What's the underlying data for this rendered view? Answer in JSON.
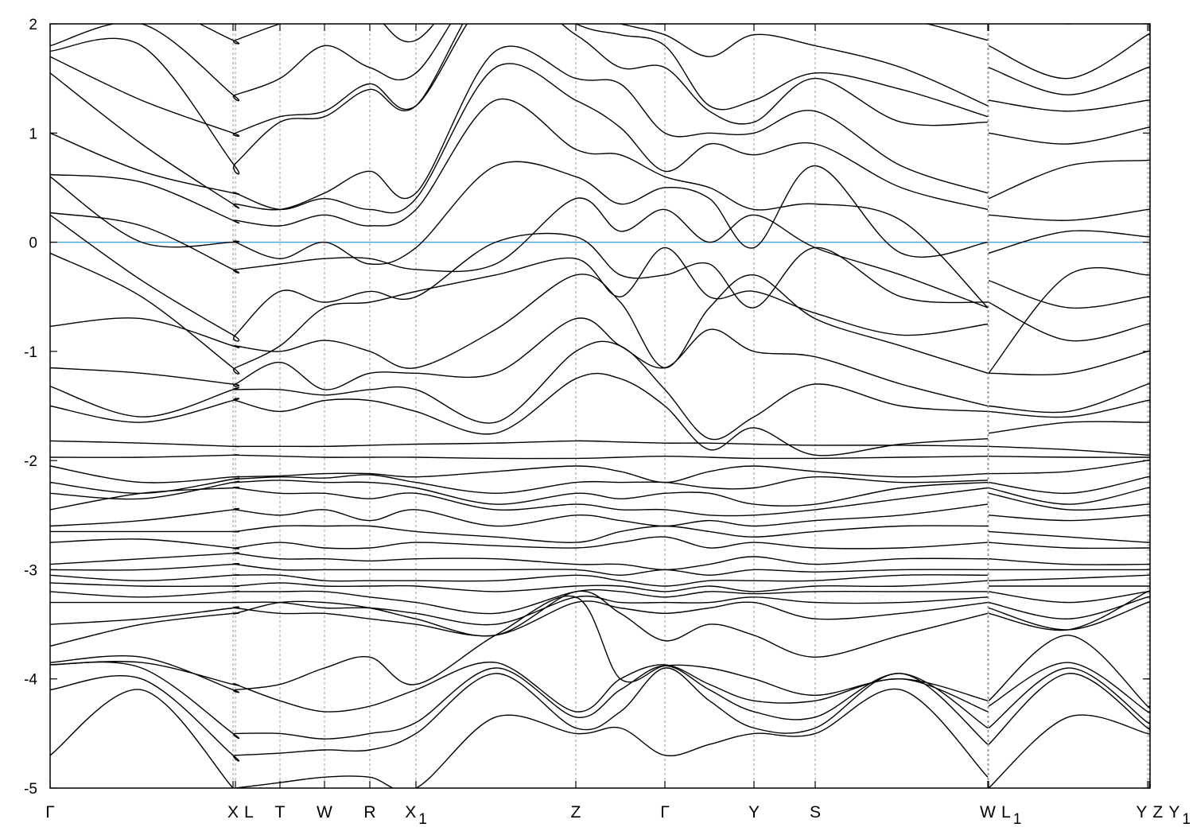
{
  "chart_data": {
    "type": "line",
    "title": "",
    "xlabel": "",
    "ylabel": "",
    "ylim": [
      -5,
      2
    ],
    "yticks": [
      "-5",
      "-4",
      "-3",
      "-2",
      "-1",
      "0",
      "1",
      "2"
    ],
    "grid": "vertical dashed lines at high-symmetry points",
    "fermi_level": {
      "value": 0,
      "color": "#3fa2dc"
    },
    "band_color": "#000000",
    "kpoints": [
      {
        "label": "Γ",
        "sub": "",
        "k": 0
      },
      {
        "label": "X",
        "sub": "",
        "k": 2.3
      },
      {
        "label": "L",
        "sub": "",
        "k": 2.33
      },
      {
        "label": "T",
        "sub": "",
        "k": 2.89
      },
      {
        "label": "W",
        "sub": "",
        "k": 3.45
      },
      {
        "label": "R",
        "sub": "",
        "k": 4.02
      },
      {
        "label": "X",
        "sub": "1",
        "k": 4.6
      },
      {
        "label": "Z",
        "sub": "",
        "k": 6.61
      },
      {
        "label": "Γ",
        "sub": "",
        "k": 7.73
      },
      {
        "label": "Y",
        "sub": "",
        "k": 8.85
      },
      {
        "label": "S",
        "sub": "",
        "k": 9.62
      },
      {
        "label": "W",
        "sub": "",
        "k": 11.79
      },
      {
        "label": "L",
        "sub": "1",
        "k": 11.8
      },
      {
        "label": "Y",
        "sub": "",
        "k": 13.8
      },
      {
        "label": "Z",
        "sub": "",
        "k": 13.82
      },
      {
        "label": "Y",
        "sub": "1",
        "k": 13.83
      }
    ],
    "break_after_k": 11.79,
    "k_samples": [
      0,
      1.15,
      2.3,
      2.33,
      2.89,
      3.45,
      4.02,
      4.6,
      5.6,
      6.61,
      7.17,
      7.73,
      8.29,
      8.85,
      9.62,
      10.7,
      11.79,
      11.8,
      12.8,
      13.8,
      13.82,
      13.83
    ],
    "bands": [
      [
        -4.7,
        -4.1,
        -5.0,
        -5.0,
        -4.95,
        -4.9,
        -4.9,
        -5.0,
        -4.35,
        -4.5,
        -4.45,
        -4.7,
        -4.6,
        -4.5,
        -4.5,
        -4.1,
        -4.9,
        -5.0,
        -4.35,
        -4.5,
        -4.5,
        -4.5
      ],
      [
        -4.1,
        -4.0,
        -4.7,
        -4.7,
        -4.68,
        -4.65,
        -4.65,
        -4.5,
        -3.95,
        -4.45,
        -4.3,
        -3.9,
        -4.2,
        -4.45,
        -4.45,
        -3.95,
        -4.6,
        -4.6,
        -3.95,
        -4.45,
        -4.45,
        -4.45
      ],
      [
        -3.87,
        -3.9,
        -4.5,
        -4.5,
        -4.5,
        -4.55,
        -4.5,
        -4.4,
        -3.9,
        -4.35,
        -4.1,
        -3.88,
        -4.1,
        -4.3,
        -4.35,
        -3.95,
        -4.45,
        -4.45,
        -3.9,
        -4.4,
        -4.4,
        -4.4
      ],
      [
        -3.87,
        -3.85,
        -4.05,
        -4.05,
        -4.2,
        -4.3,
        -4.25,
        -4.1,
        -3.85,
        -4.3,
        -4.0,
        -3.87,
        -4.05,
        -4.2,
        -4.2,
        -4.0,
        -4.3,
        -4.25,
        -3.85,
        -4.3,
        -4.3,
        -4.3
      ],
      [
        -3.85,
        -3.8,
        -4.1,
        -4.1,
        -4.05,
        -3.9,
        -3.8,
        -4.05,
        -3.6,
        -3.25,
        -4.0,
        -3.88,
        -3.9,
        -4.0,
        -4.15,
        -4.0,
        -4.2,
        -4.2,
        -3.6,
        -4.25,
        -4.25,
        -4.25
      ],
      [
        -3.7,
        -3.5,
        -3.4,
        -3.4,
        -3.3,
        -3.3,
        -3.35,
        -3.45,
        -3.6,
        -3.2,
        -3.4,
        -3.65,
        -3.5,
        -3.6,
        -3.8,
        -3.6,
        -3.4,
        -3.4,
        -3.55,
        -3.2,
        -3.2,
        -3.2
      ],
      [
        -3.5,
        -3.45,
        -3.35,
        -3.35,
        -3.4,
        -3.4,
        -3.45,
        -3.5,
        -3.6,
        -3.3,
        -3.35,
        -3.4,
        -3.35,
        -3.3,
        -3.45,
        -3.4,
        -3.3,
        -3.35,
        -3.55,
        -3.3,
        -3.3,
        -3.3
      ],
      [
        -3.3,
        -3.3,
        -3.3,
        -3.3,
        -3.3,
        -3.35,
        -3.35,
        -3.4,
        -3.5,
        -3.25,
        -3.3,
        -3.3,
        -3.3,
        -3.25,
        -3.3,
        -3.3,
        -3.25,
        -3.3,
        -3.45,
        -3.25,
        -3.25,
        -3.25
      ],
      [
        -3.2,
        -3.25,
        -3.2,
        -3.2,
        -3.2,
        -3.2,
        -3.25,
        -3.3,
        -3.4,
        -3.2,
        -3.2,
        -3.25,
        -3.2,
        -3.22,
        -3.2,
        -3.2,
        -3.2,
        -3.2,
        -3.3,
        -3.2,
        -3.2,
        -3.2
      ],
      [
        -3.12,
        -3.15,
        -3.15,
        -3.15,
        -3.12,
        -3.15,
        -3.15,
        -3.15,
        -3.2,
        -3.15,
        -3.15,
        -3.2,
        -3.15,
        -3.2,
        -3.15,
        -3.15,
        -3.1,
        -3.15,
        -3.15,
        -3.15,
        -3.15,
        -3.15
      ],
      [
        -3.05,
        -3.1,
        -3.05,
        -3.05,
        -3.05,
        -3.1,
        -3.1,
        -3.1,
        -3.1,
        -3.05,
        -3.1,
        -3.15,
        -3.1,
        -3.1,
        -3.1,
        -3.05,
        -3.05,
        -3.1,
        -3.08,
        -3.05,
        -3.05,
        -3.05
      ],
      [
        -3.0,
        -3.0,
        -2.95,
        -2.95,
        -3.0,
        -3.0,
        -3.0,
        -3.0,
        -3.0,
        -3.0,
        -3.05,
        -3.0,
        -3.05,
        -3.0,
        -3.02,
        -3.0,
        -3.0,
        -3.0,
        -3.0,
        -3.0,
        -3.0,
        -3.0
      ],
      [
        -2.95,
        -2.9,
        -2.85,
        -2.85,
        -2.9,
        -2.9,
        -2.92,
        -2.9,
        -2.9,
        -2.95,
        -2.95,
        -3.0,
        -2.95,
        -2.88,
        -2.95,
        -2.9,
        -2.9,
        -2.9,
        -2.95,
        -2.95,
        -2.95,
        -2.95
      ],
      [
        -2.75,
        -2.72,
        -2.8,
        -2.8,
        -2.75,
        -2.8,
        -2.8,
        -2.75,
        -2.78,
        -2.8,
        -2.75,
        -2.7,
        -2.8,
        -2.75,
        -2.8,
        -2.8,
        -2.75,
        -2.75,
        -2.8,
        -2.8,
        -2.8,
        -2.8
      ],
      [
        -2.65,
        -2.65,
        -2.65,
        -2.65,
        -2.6,
        -2.6,
        -2.6,
        -2.65,
        -2.7,
        -2.75,
        -2.65,
        -2.6,
        -2.65,
        -2.7,
        -2.65,
        -2.6,
        -2.6,
        -2.65,
        -2.7,
        -2.75,
        -2.75,
        -2.75
      ],
      [
        -2.6,
        -2.55,
        -2.45,
        -2.45,
        -2.5,
        -2.45,
        -2.55,
        -2.45,
        -2.6,
        -2.5,
        -2.55,
        -2.6,
        -2.55,
        -2.6,
        -2.55,
        -2.5,
        -2.4,
        -2.5,
        -2.55,
        -2.5,
        -2.5,
        -2.5
      ],
      [
        -2.45,
        -2.3,
        -2.25,
        -2.25,
        -2.3,
        -2.3,
        -2.35,
        -2.3,
        -2.45,
        -2.4,
        -2.45,
        -2.45,
        -2.5,
        -2.5,
        -2.45,
        -2.35,
        -2.25,
        -2.3,
        -2.45,
        -2.4,
        -2.4,
        -2.4
      ],
      [
        -2.3,
        -2.35,
        -2.2,
        -2.2,
        -2.18,
        -2.2,
        -2.2,
        -2.25,
        -2.4,
        -2.3,
        -2.35,
        -2.3,
        -2.3,
        -2.4,
        -2.4,
        -2.25,
        -2.2,
        -2.25,
        -2.4,
        -2.25,
        -2.25,
        -2.25
      ],
      [
        -2.2,
        -2.3,
        -2.17,
        -2.17,
        -2.15,
        -2.16,
        -2.13,
        -2.2,
        -2.3,
        -2.2,
        -2.2,
        -2.2,
        -2.25,
        -2.25,
        -2.15,
        -2.2,
        -2.18,
        -2.2,
        -2.3,
        -2.15,
        -2.15,
        -2.15
      ],
      [
        -2.05,
        -2.2,
        -2.15,
        -2.15,
        -2.14,
        -2.12,
        -2.12,
        -2.15,
        -2.1,
        -2.05,
        -2.1,
        -2.2,
        -2.1,
        -2.05,
        -2.1,
        -2.15,
        -2.12,
        -2.12,
        -2.1,
        -2.0,
        -2.0,
        -2.0
      ],
      [
        -1.97,
        -1.97,
        -1.95,
        -1.95,
        -1.96,
        -1.97,
        -1.97,
        -1.97,
        -1.98,
        -1.98,
        -1.97,
        -1.96,
        -1.97,
        -1.98,
        -1.98,
        -1.97,
        -1.96,
        -1.96,
        -1.97,
        -1.97,
        -1.97,
        -1.97
      ],
      [
        -1.82,
        -1.84,
        -1.87,
        -1.87,
        -1.87,
        -1.87,
        -1.86,
        -1.85,
        -1.84,
        -1.82,
        -1.83,
        -1.84,
        -1.84,
        -1.85,
        -1.86,
        -1.86,
        -1.87,
        -1.87,
        -1.9,
        -1.95,
        -1.95,
        -1.95
      ],
      [
        -1.5,
        -1.65,
        -1.45,
        -1.45,
        -1.55,
        -1.45,
        -1.45,
        -1.55,
        -1.75,
        -1.25,
        -1.25,
        -1.5,
        -1.9,
        -1.7,
        -1.95,
        -1.85,
        -1.8,
        -1.75,
        -1.65,
        -1.65,
        -1.65,
        -1.65
      ],
      [
        -1.32,
        -1.6,
        -1.35,
        -1.35,
        -1.35,
        -1.4,
        -1.35,
        -1.35,
        -1.65,
        -1.0,
        -0.95,
        -1.35,
        -1.8,
        -1.6,
        -1.3,
        -1.5,
        -1.55,
        -1.55,
        -1.6,
        -1.45,
        -1.45,
        -1.45
      ],
      [
        -1.15,
        -1.2,
        -1.3,
        -1.3,
        -1.1,
        -1.35,
        -1.2,
        -1.2,
        -1.2,
        -0.7,
        -0.95,
        -1.15,
        -0.8,
        -1.0,
        -1.05,
        -1.3,
        -1.5,
        -1.5,
        -1.55,
        -1.3,
        -1.3,
        -1.3
      ],
      [
        -0.77,
        -0.7,
        -0.95,
        -0.95,
        -1.0,
        -0.9,
        -1.0,
        -1.15,
        -0.8,
        -0.3,
        -0.55,
        -1.15,
        -0.6,
        -0.3,
        -0.7,
        -0.95,
        -1.2,
        -1.2,
        -1.2,
        -1.0,
        -1.0,
        -1.0
      ],
      [
        -0.1,
        -0.5,
        -1.15,
        -1.15,
        -0.95,
        -0.6,
        -0.55,
        -0.45,
        -0.3,
        -0.15,
        -0.5,
        -0.05,
        -0.5,
        -0.45,
        -0.65,
        -0.85,
        -0.75,
        -0.55,
        -0.9,
        -0.75,
        -0.75,
        -0.75
      ],
      [
        0.25,
        -0.35,
        -0.85,
        -0.85,
        -0.45,
        -0.55,
        -0.45,
        -0.5,
        0.0,
        0.05,
        -0.3,
        -0.3,
        -0.2,
        -0.6,
        -0.05,
        -0.5,
        -0.55,
        -0.35,
        -0.6,
        -0.5,
        -0.5,
        -0.5
      ],
      [
        0.27,
        0.15,
        -0.25,
        -0.25,
        -0.2,
        -0.15,
        -0.15,
        -0.25,
        -0.2,
        0.4,
        0.1,
        0.3,
        0.0,
        0.25,
        -0.05,
        -0.3,
        -0.6,
        -1.2,
        -0.3,
        -0.3,
        -0.3,
        -0.3
      ],
      [
        0.6,
        0.0,
        0.0,
        0.0,
        -0.15,
        0.0,
        -0.2,
        -0.05,
        0.7,
        0.6,
        0.35,
        0.5,
        0.4,
        -0.05,
        0.7,
        -0.1,
        0.0,
        -0.1,
        0.1,
        0.05,
        0.05,
        0.05
      ],
      [
        0.62,
        0.55,
        0.2,
        0.2,
        0.15,
        0.25,
        0.15,
        0.3,
        1.3,
        0.85,
        0.8,
        0.6,
        0.5,
        0.3,
        0.35,
        0.2,
        -0.6,
        0.25,
        0.2,
        0.3,
        0.3,
        0.3
      ],
      [
        1.0,
        0.65,
        0.45,
        0.45,
        0.3,
        0.4,
        0.3,
        0.4,
        1.6,
        1.3,
        1.05,
        0.65,
        0.9,
        0.8,
        0.9,
        0.5,
        0.3,
        0.4,
        0.7,
        0.75,
        0.75,
        0.75
      ],
      [
        1.55,
        0.9,
        0.35,
        0.35,
        0.3,
        0.45,
        0.65,
        0.45,
        1.75,
        1.5,
        1.45,
        1.0,
        1.0,
        1.0,
        1.2,
        0.7,
        0.45,
        1.0,
        0.9,
        1.05,
        1.05,
        1.05
      ],
      [
        1.7,
        1.3,
        1.0,
        1.0,
        1.15,
        1.2,
        1.45,
        1.25,
        2.3,
        1.9,
        1.6,
        1.6,
        1.2,
        1.1,
        1.5,
        1.1,
        1.1,
        1.3,
        1.2,
        1.3,
        1.3,
        1.3
      ],
      [
        1.75,
        1.8,
        0.72,
        0.72,
        1.1,
        1.15,
        1.4,
        1.25,
        2.4,
        2.0,
        1.9,
        1.8,
        1.25,
        1.3,
        1.55,
        1.4,
        1.15,
        1.6,
        1.35,
        1.6,
        1.6,
        1.6
      ],
      [
        1.8,
        2.0,
        1.35,
        1.35,
        1.5,
        1.8,
        1.6,
        1.55,
        2.5,
        2.1,
        2.0,
        1.9,
        1.7,
        1.9,
        1.8,
        1.6,
        1.25,
        1.8,
        1.5,
        1.9,
        1.9,
        1.9
      ],
      [
        2.1,
        2.2,
        1.85,
        1.85,
        2.0,
        2.1,
        2.1,
        1.85,
        2.6,
        2.2,
        2.05,
        2.0,
        2.1,
        2.0,
        2.1,
        2.05,
        1.85,
        2.1,
        2.0,
        2.1,
        2.1,
        2.1
      ]
    ]
  }
}
